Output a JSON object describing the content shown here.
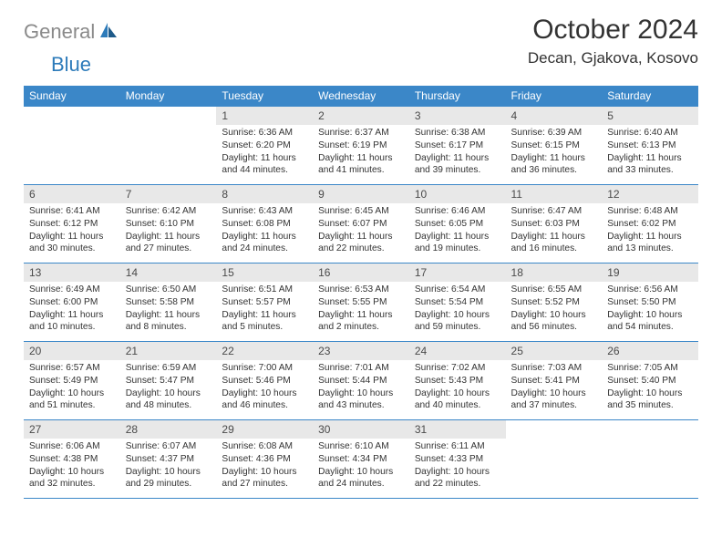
{
  "logo": {
    "text1": "General",
    "text2": "Blue"
  },
  "title": "October 2024",
  "location": "Decan, Gjakova, Kosovo",
  "colors": {
    "header_bg": "#3b87c8",
    "daynum_bg": "#e8e8e8",
    "logo_grey": "#8a8a8a",
    "logo_blue": "#2d7bba",
    "border": "#3b87c8"
  },
  "daynames": [
    "Sunday",
    "Monday",
    "Tuesday",
    "Wednesday",
    "Thursday",
    "Friday",
    "Saturday"
  ],
  "weeks": [
    [
      {
        "n": "",
        "sr": "",
        "ss": "",
        "dl": ""
      },
      {
        "n": "",
        "sr": "",
        "ss": "",
        "dl": ""
      },
      {
        "n": "1",
        "sr": "Sunrise: 6:36 AM",
        "ss": "Sunset: 6:20 PM",
        "dl": "Daylight: 11 hours and 44 minutes."
      },
      {
        "n": "2",
        "sr": "Sunrise: 6:37 AM",
        "ss": "Sunset: 6:19 PM",
        "dl": "Daylight: 11 hours and 41 minutes."
      },
      {
        "n": "3",
        "sr": "Sunrise: 6:38 AM",
        "ss": "Sunset: 6:17 PM",
        "dl": "Daylight: 11 hours and 39 minutes."
      },
      {
        "n": "4",
        "sr": "Sunrise: 6:39 AM",
        "ss": "Sunset: 6:15 PM",
        "dl": "Daylight: 11 hours and 36 minutes."
      },
      {
        "n": "5",
        "sr": "Sunrise: 6:40 AM",
        "ss": "Sunset: 6:13 PM",
        "dl": "Daylight: 11 hours and 33 minutes."
      }
    ],
    [
      {
        "n": "6",
        "sr": "Sunrise: 6:41 AM",
        "ss": "Sunset: 6:12 PM",
        "dl": "Daylight: 11 hours and 30 minutes."
      },
      {
        "n": "7",
        "sr": "Sunrise: 6:42 AM",
        "ss": "Sunset: 6:10 PM",
        "dl": "Daylight: 11 hours and 27 minutes."
      },
      {
        "n": "8",
        "sr": "Sunrise: 6:43 AM",
        "ss": "Sunset: 6:08 PM",
        "dl": "Daylight: 11 hours and 24 minutes."
      },
      {
        "n": "9",
        "sr": "Sunrise: 6:45 AM",
        "ss": "Sunset: 6:07 PM",
        "dl": "Daylight: 11 hours and 22 minutes."
      },
      {
        "n": "10",
        "sr": "Sunrise: 6:46 AM",
        "ss": "Sunset: 6:05 PM",
        "dl": "Daylight: 11 hours and 19 minutes."
      },
      {
        "n": "11",
        "sr": "Sunrise: 6:47 AM",
        "ss": "Sunset: 6:03 PM",
        "dl": "Daylight: 11 hours and 16 minutes."
      },
      {
        "n": "12",
        "sr": "Sunrise: 6:48 AM",
        "ss": "Sunset: 6:02 PM",
        "dl": "Daylight: 11 hours and 13 minutes."
      }
    ],
    [
      {
        "n": "13",
        "sr": "Sunrise: 6:49 AM",
        "ss": "Sunset: 6:00 PM",
        "dl": "Daylight: 11 hours and 10 minutes."
      },
      {
        "n": "14",
        "sr": "Sunrise: 6:50 AM",
        "ss": "Sunset: 5:58 PM",
        "dl": "Daylight: 11 hours and 8 minutes."
      },
      {
        "n": "15",
        "sr": "Sunrise: 6:51 AM",
        "ss": "Sunset: 5:57 PM",
        "dl": "Daylight: 11 hours and 5 minutes."
      },
      {
        "n": "16",
        "sr": "Sunrise: 6:53 AM",
        "ss": "Sunset: 5:55 PM",
        "dl": "Daylight: 11 hours and 2 minutes."
      },
      {
        "n": "17",
        "sr": "Sunrise: 6:54 AM",
        "ss": "Sunset: 5:54 PM",
        "dl": "Daylight: 10 hours and 59 minutes."
      },
      {
        "n": "18",
        "sr": "Sunrise: 6:55 AM",
        "ss": "Sunset: 5:52 PM",
        "dl": "Daylight: 10 hours and 56 minutes."
      },
      {
        "n": "19",
        "sr": "Sunrise: 6:56 AM",
        "ss": "Sunset: 5:50 PM",
        "dl": "Daylight: 10 hours and 54 minutes."
      }
    ],
    [
      {
        "n": "20",
        "sr": "Sunrise: 6:57 AM",
        "ss": "Sunset: 5:49 PM",
        "dl": "Daylight: 10 hours and 51 minutes."
      },
      {
        "n": "21",
        "sr": "Sunrise: 6:59 AM",
        "ss": "Sunset: 5:47 PM",
        "dl": "Daylight: 10 hours and 48 minutes."
      },
      {
        "n": "22",
        "sr": "Sunrise: 7:00 AM",
        "ss": "Sunset: 5:46 PM",
        "dl": "Daylight: 10 hours and 46 minutes."
      },
      {
        "n": "23",
        "sr": "Sunrise: 7:01 AM",
        "ss": "Sunset: 5:44 PM",
        "dl": "Daylight: 10 hours and 43 minutes."
      },
      {
        "n": "24",
        "sr": "Sunrise: 7:02 AM",
        "ss": "Sunset: 5:43 PM",
        "dl": "Daylight: 10 hours and 40 minutes."
      },
      {
        "n": "25",
        "sr": "Sunrise: 7:03 AM",
        "ss": "Sunset: 5:41 PM",
        "dl": "Daylight: 10 hours and 37 minutes."
      },
      {
        "n": "26",
        "sr": "Sunrise: 7:05 AM",
        "ss": "Sunset: 5:40 PM",
        "dl": "Daylight: 10 hours and 35 minutes."
      }
    ],
    [
      {
        "n": "27",
        "sr": "Sunrise: 6:06 AM",
        "ss": "Sunset: 4:38 PM",
        "dl": "Daylight: 10 hours and 32 minutes."
      },
      {
        "n": "28",
        "sr": "Sunrise: 6:07 AM",
        "ss": "Sunset: 4:37 PM",
        "dl": "Daylight: 10 hours and 29 minutes."
      },
      {
        "n": "29",
        "sr": "Sunrise: 6:08 AM",
        "ss": "Sunset: 4:36 PM",
        "dl": "Daylight: 10 hours and 27 minutes."
      },
      {
        "n": "30",
        "sr": "Sunrise: 6:10 AM",
        "ss": "Sunset: 4:34 PM",
        "dl": "Daylight: 10 hours and 24 minutes."
      },
      {
        "n": "31",
        "sr": "Sunrise: 6:11 AM",
        "ss": "Sunset: 4:33 PM",
        "dl": "Daylight: 10 hours and 22 minutes."
      },
      {
        "n": "",
        "sr": "",
        "ss": "",
        "dl": ""
      },
      {
        "n": "",
        "sr": "",
        "ss": "",
        "dl": ""
      }
    ]
  ]
}
